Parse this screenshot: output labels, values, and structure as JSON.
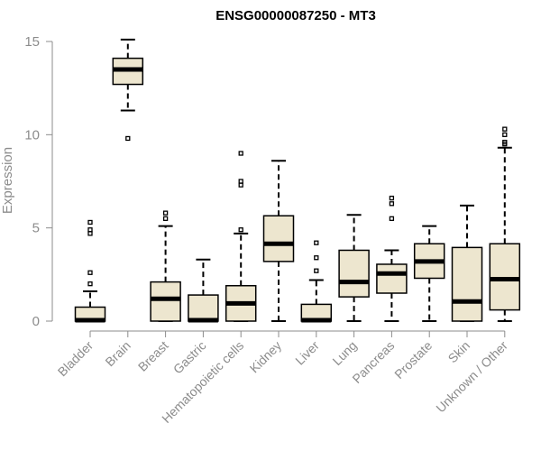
{
  "chart_data": {
    "type": "boxplot",
    "title": "ENSG00000087250 - MT3",
    "xlabel": "",
    "ylabel": "Expression",
    "ylim": [
      0,
      15
    ],
    "yticks": [
      0,
      5,
      10,
      15
    ],
    "box_fill": "#ede6cf",
    "categories": [
      "Bladder",
      "Brain",
      "Breast",
      "Gastric",
      "Hematopoietic cells",
      "Kidney",
      "Liver",
      "Lung",
      "Pancreas",
      "Prostate",
      "Skin",
      "Unknown / Other"
    ],
    "boxes": [
      {
        "name": "Bladder",
        "q1": 0,
        "median": 0.05,
        "q3": 0.75,
        "whisker_low": 0,
        "whisker_high": 1.6,
        "outliers": [
          2.0,
          2.6,
          4.7,
          4.9,
          5.3
        ]
      },
      {
        "name": "Brain",
        "q1": 12.7,
        "median": 13.5,
        "q3": 14.1,
        "whisker_low": 11.3,
        "whisker_high": 15.1,
        "outliers": [
          9.8
        ]
      },
      {
        "name": "Breast",
        "q1": 0,
        "median": 1.2,
        "q3": 2.1,
        "whisker_low": 0,
        "whisker_high": 5.1,
        "outliers": [
          5.5,
          5.8
        ]
      },
      {
        "name": "Gastric",
        "q1": 0,
        "median": 0.05,
        "q3": 1.4,
        "whisker_low": 0,
        "whisker_high": 3.3,
        "outliers": []
      },
      {
        "name": "Hematopoietic cells",
        "q1": 0,
        "median": 0.95,
        "q3": 1.9,
        "whisker_low": 0,
        "whisker_high": 4.7,
        "outliers": [
          4.9,
          7.3,
          7.5,
          9.0
        ]
      },
      {
        "name": "Kidney",
        "q1": 3.2,
        "median": 4.15,
        "q3": 5.65,
        "whisker_low": 0,
        "whisker_high": 8.6,
        "outliers": []
      },
      {
        "name": "Liver",
        "q1": 0,
        "median": 0.05,
        "q3": 0.9,
        "whisker_low": 0,
        "whisker_high": 2.2,
        "outliers": [
          2.7,
          3.4,
          4.2
        ]
      },
      {
        "name": "Lung",
        "q1": 1.3,
        "median": 2.1,
        "q3": 3.8,
        "whisker_low": 0,
        "whisker_high": 5.7,
        "outliers": []
      },
      {
        "name": "Pancreas",
        "q1": 1.5,
        "median": 2.55,
        "q3": 3.05,
        "whisker_low": 0,
        "whisker_high": 3.8,
        "outliers": [
          5.5,
          6.3,
          6.6
        ]
      },
      {
        "name": "Prostate",
        "q1": 2.3,
        "median": 3.2,
        "q3": 4.15,
        "whisker_low": 0,
        "whisker_high": 5.1,
        "outliers": []
      },
      {
        "name": "Skin",
        "q1": 0,
        "median": 1.05,
        "q3": 3.95,
        "whisker_low": 0,
        "whisker_high": 6.2,
        "outliers": []
      },
      {
        "name": "Unknown / Other",
        "q1": 0.6,
        "median": 2.25,
        "q3": 4.15,
        "whisker_low": 0,
        "whisker_high": 9.3,
        "outliers": [
          9.5,
          9.6,
          10.0,
          10.3
        ]
      }
    ]
  }
}
